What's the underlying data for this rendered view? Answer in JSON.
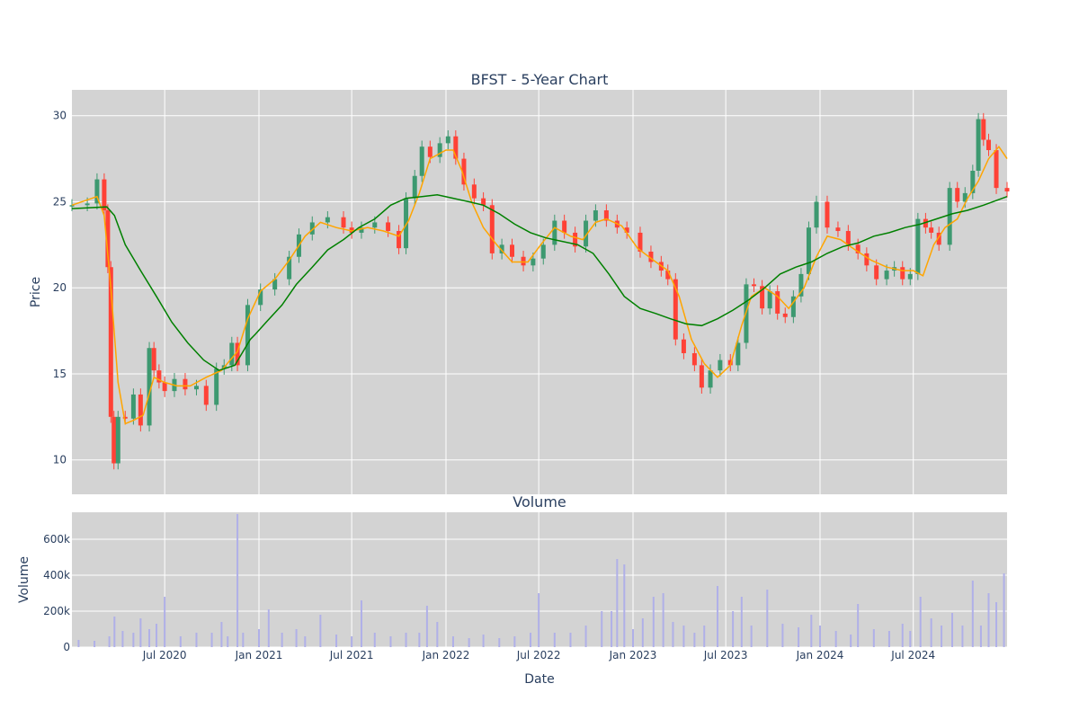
{
  "chart_data": [
    {
      "type": "candlestick",
      "title": "BFST - 5-Year Chart",
      "ylabel": "Price",
      "xlabel": "",
      "ylim": [
        8,
        31.5
      ],
      "yticks": [
        10,
        15,
        20,
        25,
        30
      ],
      "xlim": [
        "2020-01-02",
        "2024-12-31"
      ],
      "grid": true,
      "colors": {
        "increasing": "#3d9970",
        "decreasing": "#ff4136",
        "ma_short": "#ffa500",
        "ma_long": "#008000",
        "plot_bg": "#d3d3d3"
      },
      "series": [
        {
          "name": "",
          "kind": "close",
          "x": [
            "2020-01-02",
            "2020-02-01",
            "2020-02-20",
            "2020-03-05",
            "2020-03-12",
            "2020-03-18",
            "2020-03-24",
            "2020-04-01",
            "2020-04-15",
            "2020-05-01",
            "2020-05-15",
            "2020-06-01",
            "2020-06-10",
            "2020-06-20",
            "2020-07-01",
            "2020-07-20",
            "2020-08-10",
            "2020-09-01",
            "2020-09-20",
            "2020-10-10",
            "2020-10-25",
            "2020-11-09",
            "2020-11-20",
            "2020-12-10",
            "2021-01-04",
            "2021-02-01",
            "2021-03-01",
            "2021-03-20",
            "2021-04-15",
            "2021-05-15",
            "2021-06-15",
            "2021-07-01",
            "2021-07-20",
            "2021-08-15",
            "2021-09-10",
            "2021-10-01",
            "2021-10-15",
            "2021-11-01",
            "2021-11-15",
            "2021-12-01",
            "2021-12-20",
            "2022-01-05",
            "2022-01-20",
            "2022-02-05",
            "2022-02-25",
            "2022-03-15",
            "2022-04-01",
            "2022-04-20",
            "2022-05-10",
            "2022-06-01",
            "2022-06-20",
            "2022-07-10",
            "2022-08-01",
            "2022-08-20",
            "2022-09-10",
            "2022-10-01",
            "2022-10-20",
            "2022-11-10",
            "2022-12-01",
            "2022-12-20",
            "2023-01-15",
            "2023-02-05",
            "2023-02-25",
            "2023-03-10",
            "2023-03-25",
            "2023-04-10",
            "2023-05-01",
            "2023-05-15",
            "2023-06-01",
            "2023-06-20",
            "2023-07-10",
            "2023-07-25",
            "2023-08-10",
            "2023-08-25",
            "2023-09-10",
            "2023-09-25",
            "2023-10-10",
            "2023-10-25",
            "2023-11-10",
            "2023-11-25",
            "2023-12-10",
            "2023-12-25",
            "2024-01-15",
            "2024-02-05",
            "2024-02-25",
            "2024-03-15",
            "2024-04-01",
            "2024-04-20",
            "2024-05-10",
            "2024-05-25",
            "2024-06-10",
            "2024-06-25",
            "2024-07-10",
            "2024-07-25",
            "2024-08-05",
            "2024-08-20",
            "2024-09-10",
            "2024-09-25",
            "2024-10-10",
            "2024-10-25",
            "2024-11-05",
            "2024-11-15",
            "2024-11-25",
            "2024-12-10",
            "2024-12-31"
          ],
          "values": [
            24.8,
            24.9,
            26.3,
            24.5,
            21.2,
            12.5,
            9.8,
            12.5,
            12.4,
            13.8,
            12.0,
            16.5,
            15.2,
            14.5,
            14.0,
            14.7,
            14.1,
            14.3,
            13.2,
            15.3,
            15.5,
            16.8,
            15.5,
            19.0,
            19.9,
            20.5,
            21.8,
            23.1,
            23.8,
            24.1,
            23.5,
            23.2,
            23.5,
            23.8,
            23.3,
            22.3,
            25.2,
            26.5,
            28.2,
            27.6,
            28.4,
            28.8,
            27.5,
            26.0,
            25.2,
            24.8,
            22.0,
            22.5,
            21.8,
            21.3,
            21.7,
            22.5,
            23.9,
            23.2,
            22.4,
            23.9,
            24.5,
            23.9,
            23.5,
            23.2,
            22.1,
            21.5,
            21.0,
            20.5,
            17.0,
            16.2,
            15.5,
            14.2,
            15.2,
            15.8,
            15.5,
            16.8,
            20.2,
            20.1,
            18.8,
            19.8,
            18.5,
            18.3,
            19.5,
            20.8,
            23.5,
            25.0,
            23.5,
            23.3,
            22.5,
            22.0,
            21.3,
            20.5,
            21.0,
            21.2,
            20.5,
            20.8,
            24.0,
            23.5,
            23.2,
            22.5,
            25.8,
            25.0,
            25.5,
            26.8,
            29.8,
            28.6,
            28.0,
            25.8,
            25.6
          ]
        },
        {
          "name": "",
          "kind": "moving-average-short",
          "x": [
            "2020-01-02",
            "2020-02-20",
            "2020-03-05",
            "2020-03-18",
            "2020-04-01",
            "2020-04-15",
            "2020-05-01",
            "2020-05-20",
            "2020-06-10",
            "2020-07-01",
            "2020-07-25",
            "2020-08-20",
            "2020-09-20",
            "2020-10-20",
            "2020-11-20",
            "2020-12-10",
            "2021-01-04",
            "2021-02-01",
            "2021-03-01",
            "2021-04-01",
            "2021-05-01",
            "2021-06-01",
            "2021-07-01",
            "2021-08-01",
            "2021-09-01",
            "2021-10-01",
            "2021-10-20",
            "2021-11-10",
            "2021-12-01",
            "2022-01-01",
            "2022-01-15",
            "2022-02-01",
            "2022-02-20",
            "2022-03-15",
            "2022-04-10",
            "2022-05-10",
            "2022-06-10",
            "2022-07-05",
            "2022-08-01",
            "2022-09-01",
            "2022-09-25",
            "2022-10-20",
            "2022-11-10",
            "2022-12-10",
            "2023-01-10",
            "2023-02-10",
            "2023-03-10",
            "2023-04-01",
            "2023-04-25",
            "2023-05-20",
            "2023-06-15",
            "2023-07-10",
            "2023-08-01",
            "2023-08-20",
            "2023-09-15",
            "2023-10-10",
            "2023-11-01",
            "2023-12-01",
            "2023-12-25",
            "2024-01-15",
            "2024-02-10",
            "2024-03-10",
            "2024-04-10",
            "2024-05-10",
            "2024-06-10",
            "2024-07-01",
            "2024-07-20",
            "2024-08-10",
            "2024-09-01",
            "2024-09-25",
            "2024-10-15",
            "2024-11-05",
            "2024-11-25",
            "2024-12-15",
            "2024-12-31"
          ],
          "values": [
            24.8,
            25.3,
            24.2,
            20.0,
            14.5,
            12.1,
            12.3,
            12.6,
            14.8,
            14.5,
            14.3,
            14.3,
            14.8,
            15.2,
            16.3,
            18.2,
            19.8,
            20.5,
            21.6,
            23.0,
            23.8,
            23.5,
            23.3,
            23.5,
            23.3,
            23.0,
            23.9,
            25.5,
            27.5,
            28.0,
            28.0,
            26.8,
            25.0,
            23.5,
            22.5,
            21.5,
            21.5,
            22.5,
            23.5,
            23.0,
            22.8,
            23.8,
            24.0,
            23.6,
            22.3,
            21.6,
            21.0,
            19.5,
            17.0,
            15.6,
            14.8,
            15.5,
            17.8,
            19.5,
            20.0,
            19.5,
            18.8,
            20.0,
            21.8,
            23.0,
            22.8,
            22.2,
            21.6,
            21.2,
            21.0,
            21.0,
            20.7,
            22.5,
            23.5,
            24.0,
            25.2,
            26.2,
            27.5,
            28.2,
            27.5
          ]
        },
        {
          "name": "",
          "kind": "moving-average-long",
          "x": [
            "2020-01-02",
            "2020-03-10",
            "2020-03-25",
            "2020-04-15",
            "2020-05-15",
            "2020-06-15",
            "2020-07-15",
            "2020-08-15",
            "2020-09-15",
            "2020-10-15",
            "2020-11-15",
            "2020-12-15",
            "2020-12-25",
            "2021-01-15",
            "2021-02-15",
            "2021-03-15",
            "2021-04-15",
            "2021-05-15",
            "2021-06-15",
            "2021-07-15",
            "2021-08-15",
            "2021-09-15",
            "2021-10-15",
            "2021-11-15",
            "2021-12-15",
            "2022-01-15",
            "2022-02-15",
            "2022-03-15",
            "2022-04-15",
            "2022-05-15",
            "2022-06-15",
            "2022-07-15",
            "2022-08-15",
            "2022-09-15",
            "2022-10-15",
            "2022-11-15",
            "2022-12-15",
            "2023-01-15",
            "2023-02-15",
            "2023-03-15",
            "2023-04-15",
            "2023-05-15",
            "2023-06-15",
            "2023-07-15",
            "2023-08-15",
            "2023-09-15",
            "2023-10-15",
            "2023-11-15",
            "2023-12-15",
            "2024-01-15",
            "2024-02-15",
            "2024-03-15",
            "2024-04-15",
            "2024-05-15",
            "2024-06-15",
            "2024-07-15",
            "2024-08-15",
            "2024-09-15",
            "2024-10-15",
            "2024-11-15",
            "2024-12-31"
          ],
          "values": [
            24.6,
            24.7,
            24.2,
            22.5,
            21.0,
            19.5,
            18.0,
            16.8,
            15.8,
            15.2,
            15.5,
            17.0,
            17.3,
            18.0,
            19.0,
            20.2,
            21.2,
            22.2,
            22.8,
            23.5,
            24.0,
            24.8,
            25.2,
            25.3,
            25.4,
            25.2,
            25.0,
            24.8,
            24.3,
            23.7,
            23.2,
            22.9,
            22.7,
            22.5,
            22.0,
            20.8,
            19.5,
            18.8,
            18.5,
            18.2,
            17.9,
            17.8,
            18.2,
            18.7,
            19.3,
            20.0,
            20.8,
            21.2,
            21.5,
            22.0,
            22.4,
            22.6,
            23.0,
            23.2,
            23.5,
            23.7,
            24.0,
            24.3,
            24.5,
            24.8,
            25.3
          ]
        }
      ]
    },
    {
      "type": "bar",
      "title": "Volume",
      "ylabel": "Volume",
      "xlabel": "Date",
      "ylim": [
        0,
        750000
      ],
      "yticks": [
        0,
        200000,
        400000,
        600000
      ],
      "ytick_labels": [
        "0",
        "200k",
        "400k",
        "600k"
      ],
      "xticks": [
        "2020-07-01",
        "2021-01-01",
        "2021-07-01",
        "2022-01-01",
        "2022-07-01",
        "2023-01-01",
        "2023-07-01",
        "2024-01-01",
        "2024-07-01"
      ],
      "xtick_labels": [
        "Jul 2020",
        "Jan 2021",
        "Jul 2021",
        "Jan 2022",
        "Jul 2022",
        "Jan 2023",
        "Jul 2023",
        "Jan 2024",
        "Jul 2024"
      ],
      "grid": true,
      "colors": {
        "bar": "#b0b0e8"
      },
      "series": [
        {
          "name": "",
          "x": [
            "2020-01-15",
            "2020-02-15",
            "2020-03-15",
            "2020-03-25",
            "2020-04-10",
            "2020-05-01",
            "2020-05-15",
            "2020-06-01",
            "2020-06-15",
            "2020-07-01",
            "2020-08-01",
            "2020-09-01",
            "2020-10-01",
            "2020-10-20",
            "2020-11-01",
            "2020-11-20",
            "2020-12-01",
            "2021-01-01",
            "2021-01-20",
            "2021-02-15",
            "2021-03-15",
            "2021-04-01",
            "2021-05-01",
            "2021-06-01",
            "2021-07-01",
            "2021-07-20",
            "2021-08-15",
            "2021-09-15",
            "2021-10-15",
            "2021-11-10",
            "2021-11-25",
            "2021-12-15",
            "2022-01-15",
            "2022-02-15",
            "2022-03-15",
            "2022-04-15",
            "2022-05-15",
            "2022-06-15",
            "2022-07-01",
            "2022-08-01",
            "2022-09-01",
            "2022-10-01",
            "2022-11-01",
            "2022-11-20",
            "2022-12-01",
            "2022-12-15",
            "2023-01-01",
            "2023-01-20",
            "2023-02-10",
            "2023-03-01",
            "2023-03-20",
            "2023-04-10",
            "2023-05-01",
            "2023-05-20",
            "2023-06-15",
            "2023-07-15",
            "2023-08-01",
            "2023-08-20",
            "2023-09-20",
            "2023-10-20",
            "2023-11-20",
            "2023-12-15",
            "2024-01-01",
            "2024-02-01",
            "2024-03-01",
            "2024-03-15",
            "2024-04-15",
            "2024-05-15",
            "2024-06-10",
            "2024-06-25",
            "2024-07-15",
            "2024-08-05",
            "2024-08-25",
            "2024-09-15",
            "2024-10-05",
            "2024-10-25",
            "2024-11-10",
            "2024-11-25",
            "2024-12-10",
            "2024-12-25"
          ],
          "values": [
            40000,
            35000,
            60000,
            170000,
            90000,
            80000,
            160000,
            100000,
            130000,
            280000,
            60000,
            80000,
            80000,
            140000,
            60000,
            740000,
            80000,
            100000,
            210000,
            80000,
            100000,
            60000,
            180000,
            70000,
            60000,
            260000,
            80000,
            60000,
            80000,
            80000,
            230000,
            140000,
            60000,
            50000,
            70000,
            50000,
            60000,
            80000,
            300000,
            80000,
            80000,
            120000,
            200000,
            200000,
            490000,
            460000,
            100000,
            160000,
            280000,
            300000,
            140000,
            120000,
            80000,
            120000,
            340000,
            200000,
            280000,
            120000,
            320000,
            130000,
            110000,
            180000,
            120000,
            90000,
            70000,
            240000,
            100000,
            90000,
            130000,
            90000,
            280000,
            160000,
            120000,
            190000,
            120000,
            370000,
            120000,
            300000,
            250000,
            410000
          ]
        }
      ]
    }
  ]
}
